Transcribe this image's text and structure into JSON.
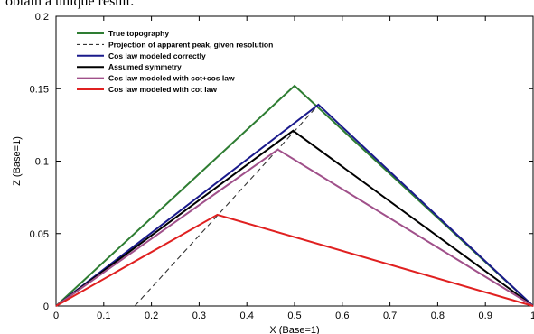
{
  "header_text": "obtain a unique result.",
  "chart_data": {
    "type": "line",
    "title": "",
    "xlabel": "X (Base=1)",
    "ylabel": "Z (Base=1)",
    "xlim": [
      0,
      1
    ],
    "ylim": [
      0,
      0.2
    ],
    "x_ticks": [
      0,
      0.1,
      0.2,
      0.3,
      0.4,
      0.5,
      0.6,
      0.7,
      0.8,
      0.9,
      1
    ],
    "x_tick_labels": [
      "0",
      "0.1",
      "0.2",
      "0.3",
      "0.4",
      "0.5",
      "0.6",
      "0.7",
      "0.8",
      "0.9",
      "1"
    ],
    "y_ticks": [
      0,
      0.05,
      0.1,
      0.15,
      0.2
    ],
    "y_tick_labels": [
      "0",
      "0.05",
      "0.1",
      "0.15",
      "0.2"
    ],
    "grid": false,
    "legend_position": "top-left",
    "series": [
      {
        "name": "True topography",
        "color": "#2e7d32",
        "dash": false,
        "x": [
          0,
          0.5,
          1
        ],
        "y": [
          0,
          0.152,
          0
        ]
      },
      {
        "name": "Projection of apparent peak, given resolution",
        "color": "#333333",
        "dash": true,
        "x": [
          0.165,
          0.545
        ],
        "y": [
          0,
          0.137
        ]
      },
      {
        "name": "Cos law modeled correctly",
        "color": "#1a1a8c",
        "dash": false,
        "x": [
          0,
          0.55,
          1
        ],
        "y": [
          0,
          0.139,
          0
        ]
      },
      {
        "name": "Assumed symmetry",
        "color": "#000000",
        "dash": false,
        "x": [
          0,
          0.497,
          1
        ],
        "y": [
          0,
          0.121,
          0
        ]
      },
      {
        "name": "Cos law modeled with cot+cos law",
        "color": "#a0508a",
        "dash": false,
        "x": [
          0,
          0.465,
          1
        ],
        "y": [
          0,
          0.108,
          0
        ]
      },
      {
        "name": "Cos law modeled with cot law",
        "color": "#e02020",
        "dash": false,
        "x": [
          0,
          0.338,
          1
        ],
        "y": [
          0,
          0.063,
          0
        ]
      }
    ]
  }
}
